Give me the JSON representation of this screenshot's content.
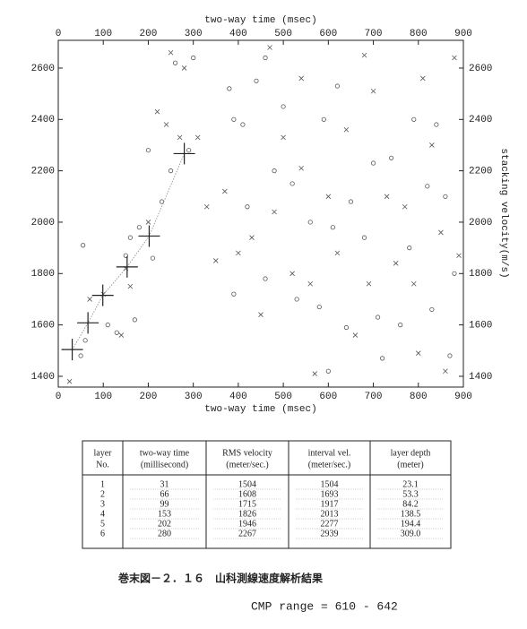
{
  "chart_data": {
    "type": "scatter",
    "x_label": "two-way time (msec)",
    "y_label": "stacking velocity(m/s)",
    "xlim": [
      0,
      900
    ],
    "xticks": [
      0,
      100,
      200,
      300,
      400,
      500,
      600,
      700,
      800,
      900
    ],
    "ylim": [
      1358,
      2708
    ],
    "yticks": [
      1400,
      1600,
      1800,
      2000,
      2200,
      2400,
      2600
    ],
    "series": [
      {
        "marker": "circle",
        "color": "#555555",
        "x": [
          50,
          60,
          55,
          110,
          130,
          170,
          160,
          180,
          150,
          210,
          200,
          230,
          250,
          290,
          260,
          300,
          380,
          390,
          410,
          440,
          460,
          420,
          390,
          460,
          480,
          500,
          520,
          530,
          560,
          580,
          590,
          610,
          620,
          650,
          640,
          680,
          700,
          710,
          740,
          760,
          780,
          790,
          820,
          830,
          840,
          860,
          870,
          880,
          600,
          720
        ],
        "values": [
          1480,
          1540,
          1910,
          1600,
          1570,
          1620,
          1940,
          1980,
          1870,
          1860,
          2280,
          2080,
          2200,
          2280,
          2620,
          2640,
          2520,
          2400,
          2380,
          2550,
          2640,
          2060,
          1720,
          1780,
          2200,
          2450,
          2150,
          1700,
          2000,
          1670,
          2400,
          1980,
          2530,
          2080,
          1590,
          1940,
          2230,
          1630,
          2250,
          1600,
          1900,
          2400,
          2140,
          1660,
          2380,
          2100,
          1480,
          1800,
          1420,
          1470
        ]
      },
      {
        "marker": "x",
        "color": "#555555",
        "x": [
          25,
          70,
          100,
          140,
          160,
          150,
          200,
          220,
          240,
          270,
          280,
          250,
          310,
          330,
          350,
          370,
          400,
          430,
          450,
          470,
          480,
          500,
          520,
          540,
          560,
          570,
          600,
          620,
          640,
          660,
          690,
          700,
          730,
          750,
          770,
          790,
          810,
          830,
          850,
          880,
          890,
          860,
          800,
          680,
          540
        ],
        "values": [
          1380,
          1700,
          1720,
          1560,
          1750,
          1820,
          2000,
          2430,
          2380,
          2330,
          2600,
          2660,
          2330,
          2060,
          1850,
          2120,
          1880,
          1940,
          1640,
          2680,
          2040,
          2330,
          1800,
          2210,
          1760,
          1410,
          2100,
          1880,
          2360,
          1560,
          1760,
          2510,
          2100,
          1840,
          2060,
          1760,
          2560,
          2300,
          1960,
          2640,
          1870,
          1420,
          1490,
          2650,
          2560
        ]
      },
      {
        "marker": "pick",
        "color": "#222222",
        "x": [
          31,
          66,
          99,
          153,
          202,
          280
        ],
        "values": [
          1504,
          1608,
          1715,
          1826,
          1946,
          2267
        ]
      }
    ]
  },
  "table": {
    "headers": [
      [
        "layer",
        "No."
      ],
      [
        "two-way time",
        "(millisecond)"
      ],
      [
        "RMS velocity",
        "(meter/sec.)"
      ],
      [
        "interval vel.",
        "(meter/sec.)"
      ],
      [
        "layer depth",
        "(meter)"
      ]
    ],
    "rows": [
      [
        "1",
        "31",
        "1504",
        "1504",
        "23.1"
      ],
      [
        "2",
        "66",
        "1608",
        "1693",
        "53.3"
      ],
      [
        "3",
        "99",
        "1715",
        "1917",
        "84.2"
      ],
      [
        "4",
        "153",
        "1826",
        "2013",
        "138.5"
      ],
      [
        "5",
        "202",
        "1946",
        "2277",
        "194.4"
      ],
      [
        "6",
        "280",
        "2267",
        "2939",
        "309.0"
      ]
    ]
  },
  "caption": "巻末図－２．１６　山科測線速度解析結果",
  "cmp_range": "CMP range = 610 - 642"
}
